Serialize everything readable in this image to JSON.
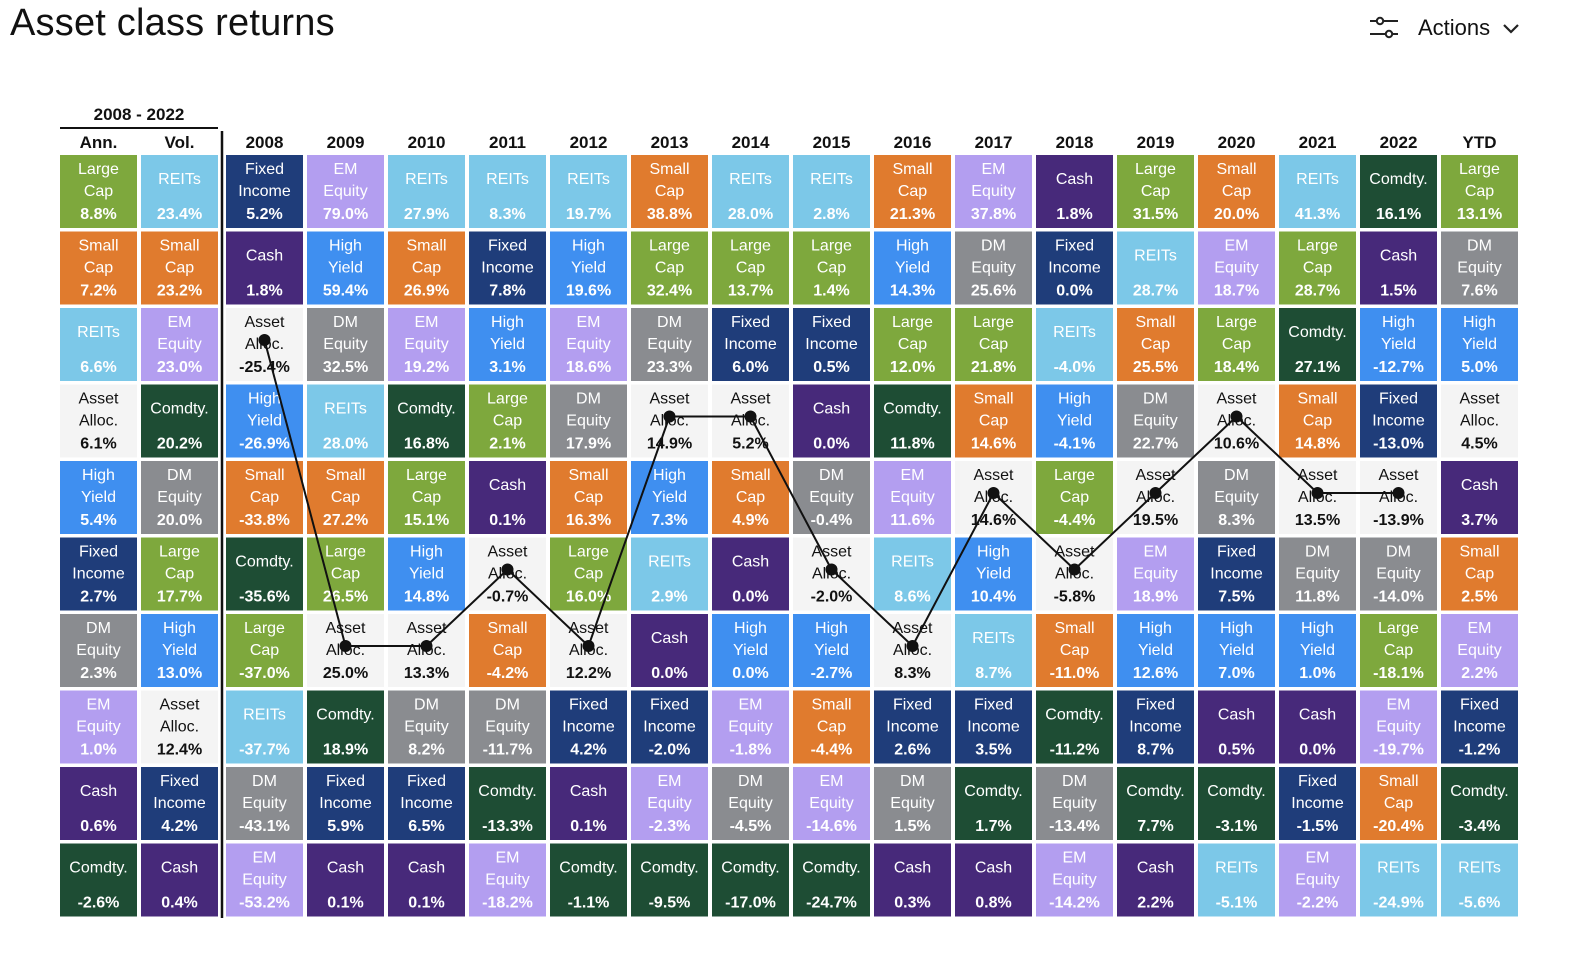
{
  "header": {
    "title": "Asset class returns",
    "actions_label": "Actions",
    "actions_icons": [
      "sliders-icon",
      "chevron-down-icon"
    ]
  },
  "chart_data": {
    "type": "table",
    "period_label": "2008 - 2022",
    "summary_headers": [
      "Ann.",
      "Vol."
    ],
    "years": [
      "2008",
      "2009",
      "2010",
      "2011",
      "2012",
      "2013",
      "2014",
      "2015",
      "2016",
      "2017",
      "2018",
      "2019",
      "2020",
      "2021",
      "2022",
      "YTD"
    ],
    "colors": {
      "Large Cap": "#7ea83d",
      "Small Cap": "#e07b2e",
      "REITs": "#7cc8e8",
      "EM Equity": "#b39ef0",
      "DM Equity": "#8a8c90",
      "High Yield": "#3f8ff0",
      "Fixed Income": "#1f3d7a",
      "Comdty.": "#1e4d34",
      "Cash": "#47297a",
      "Asset Alloc.": "#f4f4f4"
    },
    "summary": {
      "ann": [
        [
          "Large Cap",
          "8.8%"
        ],
        [
          "Small Cap",
          "7.2%"
        ],
        [
          "REITs",
          "6.6%"
        ],
        [
          "Asset Alloc.",
          "6.1%"
        ],
        [
          "High Yield",
          "5.4%"
        ],
        [
          "Fixed Income",
          "2.7%"
        ],
        [
          "DM Equity",
          "2.3%"
        ],
        [
          "EM Equity",
          "1.0%"
        ],
        [
          "Cash",
          "0.6%"
        ],
        [
          "Comdty.",
          "-2.6%"
        ]
      ],
      "vol": [
        [
          "REITs",
          "23.4%"
        ],
        [
          "Small Cap",
          "23.2%"
        ],
        [
          "EM Equity",
          "23.0%"
        ],
        [
          "Comdty.",
          "20.2%"
        ],
        [
          "DM Equity",
          "20.0%"
        ],
        [
          "Large Cap",
          "17.7%"
        ],
        [
          "High Yield",
          "13.0%"
        ],
        [
          "Asset Alloc.",
          "12.4%"
        ],
        [
          "Fixed Income",
          "4.2%"
        ],
        [
          "Cash",
          "0.4%"
        ]
      ]
    },
    "columns": [
      [
        [
          "Fixed Income",
          "5.2%"
        ],
        [
          "Cash",
          "1.8%"
        ],
        [
          "Asset Alloc.",
          "-25.4%"
        ],
        [
          "High Yield",
          "-26.9%"
        ],
        [
          "Small Cap",
          "-33.8%"
        ],
        [
          "Comdty.",
          "-35.6%"
        ],
        [
          "Large Cap",
          "-37.0%"
        ],
        [
          "REITs",
          "-37.7%"
        ],
        [
          "DM Equity",
          "-43.1%"
        ],
        [
          "EM Equity",
          "-53.2%"
        ]
      ],
      [
        [
          "EM Equity",
          "79.0%"
        ],
        [
          "High Yield",
          "59.4%"
        ],
        [
          "DM Equity",
          "32.5%"
        ],
        [
          "REITs",
          "28.0%"
        ],
        [
          "Small Cap",
          "27.2%"
        ],
        [
          "Large Cap",
          "26.5%"
        ],
        [
          "Asset Alloc.",
          "25.0%"
        ],
        [
          "Comdty.",
          "18.9%"
        ],
        [
          "Fixed Income",
          "5.9%"
        ],
        [
          "Cash",
          "0.1%"
        ]
      ],
      [
        [
          "REITs",
          "27.9%"
        ],
        [
          "Small Cap",
          "26.9%"
        ],
        [
          "EM Equity",
          "19.2%"
        ],
        [
          "Comdty.",
          "16.8%"
        ],
        [
          "Large Cap",
          "15.1%"
        ],
        [
          "High Yield",
          "14.8%"
        ],
        [
          "Asset Alloc.",
          "13.3%"
        ],
        [
          "DM Equity",
          "8.2%"
        ],
        [
          "Fixed Income",
          "6.5%"
        ],
        [
          "Cash",
          "0.1%"
        ]
      ],
      [
        [
          "REITs",
          "8.3%"
        ],
        [
          "Fixed Income",
          "7.8%"
        ],
        [
          "High Yield",
          "3.1%"
        ],
        [
          "Large Cap",
          "2.1%"
        ],
        [
          "Cash",
          "0.1%"
        ],
        [
          "Asset Alloc.",
          "-0.7%"
        ],
        [
          "Small Cap",
          "-4.2%"
        ],
        [
          "DM Equity",
          "-11.7%"
        ],
        [
          "Comdty.",
          "-13.3%"
        ],
        [
          "EM Equity",
          "-18.2%"
        ]
      ],
      [
        [
          "REITs",
          "19.7%"
        ],
        [
          "High Yield",
          "19.6%"
        ],
        [
          "EM Equity",
          "18.6%"
        ],
        [
          "DM Equity",
          "17.9%"
        ],
        [
          "Small Cap",
          "16.3%"
        ],
        [
          "Large Cap",
          "16.0%"
        ],
        [
          "Asset Alloc.",
          "12.2%"
        ],
        [
          "Fixed Income",
          "4.2%"
        ],
        [
          "Cash",
          "0.1%"
        ],
        [
          "Comdty.",
          "-1.1%"
        ]
      ],
      [
        [
          "Small Cap",
          "38.8%"
        ],
        [
          "Large Cap",
          "32.4%"
        ],
        [
          "DM Equity",
          "23.3%"
        ],
        [
          "Asset Alloc.",
          "14.9%"
        ],
        [
          "High Yield",
          "7.3%"
        ],
        [
          "REITs",
          "2.9%"
        ],
        [
          "Cash",
          "0.0%"
        ],
        [
          "Fixed Income",
          "-2.0%"
        ],
        [
          "EM Equity",
          "-2.3%"
        ],
        [
          "Comdty.",
          "-9.5%"
        ]
      ],
      [
        [
          "REITs",
          "28.0%"
        ],
        [
          "Large Cap",
          "13.7%"
        ],
        [
          "Fixed Income",
          "6.0%"
        ],
        [
          "Asset Alloc.",
          "5.2%"
        ],
        [
          "Small Cap",
          "4.9%"
        ],
        [
          "Cash",
          "0.0%"
        ],
        [
          "High Yield",
          "0.0%"
        ],
        [
          "EM Equity",
          "-1.8%"
        ],
        [
          "DM Equity",
          "-4.5%"
        ],
        [
          "Comdty.",
          "-17.0%"
        ]
      ],
      [
        [
          "REITs",
          "2.8%"
        ],
        [
          "Large Cap",
          "1.4%"
        ],
        [
          "Fixed Income",
          "0.5%"
        ],
        [
          "Cash",
          "0.0%"
        ],
        [
          "DM Equity",
          "-0.4%"
        ],
        [
          "Asset Alloc.",
          "-2.0%"
        ],
        [
          "High Yield",
          "-2.7%"
        ],
        [
          "Small Cap",
          "-4.4%"
        ],
        [
          "EM Equity",
          "-14.6%"
        ],
        [
          "Comdty.",
          "-24.7%"
        ]
      ],
      [
        [
          "Small Cap",
          "21.3%"
        ],
        [
          "High Yield",
          "14.3%"
        ],
        [
          "Large Cap",
          "12.0%"
        ],
        [
          "Comdty.",
          "11.8%"
        ],
        [
          "EM Equity",
          "11.6%"
        ],
        [
          "REITs",
          "8.6%"
        ],
        [
          "Asset Alloc.",
          "8.3%"
        ],
        [
          "Fixed Income",
          "2.6%"
        ],
        [
          "DM Equity",
          "1.5%"
        ],
        [
          "Cash",
          "0.3%"
        ]
      ],
      [
        [
          "EM Equity",
          "37.8%"
        ],
        [
          "DM Equity",
          "25.6%"
        ],
        [
          "Large Cap",
          "21.8%"
        ],
        [
          "Small Cap",
          "14.6%"
        ],
        [
          "Asset Alloc.",
          "14.6%"
        ],
        [
          "High Yield",
          "10.4%"
        ],
        [
          "REITs",
          "8.7%"
        ],
        [
          "Fixed Income",
          "3.5%"
        ],
        [
          "Comdty.",
          "1.7%"
        ],
        [
          "Cash",
          "0.8%"
        ]
      ],
      [
        [
          "Cash",
          "1.8%"
        ],
        [
          "Fixed Income",
          "0.0%"
        ],
        [
          "REITs",
          "-4.0%"
        ],
        [
          "High Yield",
          "-4.1%"
        ],
        [
          "Large Cap",
          "-4.4%"
        ],
        [
          "Asset Alloc.",
          "-5.8%"
        ],
        [
          "Small Cap",
          "-11.0%"
        ],
        [
          "Comdty.",
          "-11.2%"
        ],
        [
          "DM Equity",
          "-13.4%"
        ],
        [
          "EM Equity",
          "-14.2%"
        ]
      ],
      [
        [
          "Large Cap",
          "31.5%"
        ],
        [
          "REITs",
          "28.7%"
        ],
        [
          "Small Cap",
          "25.5%"
        ],
        [
          "DM Equity",
          "22.7%"
        ],
        [
          "Asset Alloc.",
          "19.5%"
        ],
        [
          "EM Equity",
          "18.9%"
        ],
        [
          "High Yield",
          "12.6%"
        ],
        [
          "Fixed Income",
          "8.7%"
        ],
        [
          "Comdty.",
          "7.7%"
        ],
        [
          "Cash",
          "2.2%"
        ]
      ],
      [
        [
          "Small Cap",
          "20.0%"
        ],
        [
          "EM Equity",
          "18.7%"
        ],
        [
          "Large Cap",
          "18.4%"
        ],
        [
          "Asset Alloc.",
          "10.6%"
        ],
        [
          "DM Equity",
          "8.3%"
        ],
        [
          "Fixed Income",
          "7.5%"
        ],
        [
          "High Yield",
          "7.0%"
        ],
        [
          "Cash",
          "0.5%"
        ],
        [
          "Comdty.",
          "-3.1%"
        ],
        [
          "REITs",
          "-5.1%"
        ]
      ],
      [
        [
          "REITs",
          "41.3%"
        ],
        [
          "Large Cap",
          "28.7%"
        ],
        [
          "Comdty.",
          "27.1%"
        ],
        [
          "Small Cap",
          "14.8%"
        ],
        [
          "Asset Alloc.",
          "13.5%"
        ],
        [
          "DM Equity",
          "11.8%"
        ],
        [
          "High Yield",
          "1.0%"
        ],
        [
          "Cash",
          "0.0%"
        ],
        [
          "Fixed Income",
          "-1.5%"
        ],
        [
          "EM Equity",
          "-2.2%"
        ]
      ],
      [
        [
          "Comdty.",
          "16.1%"
        ],
        [
          "Cash",
          "1.5%"
        ],
        [
          "High Yield",
          "-12.7%"
        ],
        [
          "Fixed Income",
          "-13.0%"
        ],
        [
          "Asset Alloc.",
          "-13.9%"
        ],
        [
          "DM Equity",
          "-14.0%"
        ],
        [
          "Large Cap",
          "-18.1%"
        ],
        [
          "EM Equity",
          "-19.7%"
        ],
        [
          "Small Cap",
          "-20.4%"
        ],
        [
          "REITs",
          "-24.9%"
        ]
      ],
      [
        [
          "Large Cap",
          "13.1%"
        ],
        [
          "DM Equity",
          "7.6%"
        ],
        [
          "High Yield",
          "5.0%"
        ],
        [
          "Asset Alloc.",
          "4.5%"
        ],
        [
          "Cash",
          "3.7%"
        ],
        [
          "Small Cap",
          "2.5%"
        ],
        [
          "EM Equity",
          "2.2%"
        ],
        [
          "Fixed Income",
          "-1.2%"
        ],
        [
          "Comdty.",
          "-3.4%"
        ],
        [
          "REITs",
          "-5.6%"
        ]
      ]
    ],
    "asset_alloc_line": {
      "series": "Asset Alloc.",
      "years": [
        "2008",
        "2009",
        "2010",
        "2011",
        "2012",
        "2013",
        "2014",
        "2015",
        "2016",
        "2017",
        "2018",
        "2019",
        "2020",
        "2021",
        "2022"
      ]
    }
  }
}
